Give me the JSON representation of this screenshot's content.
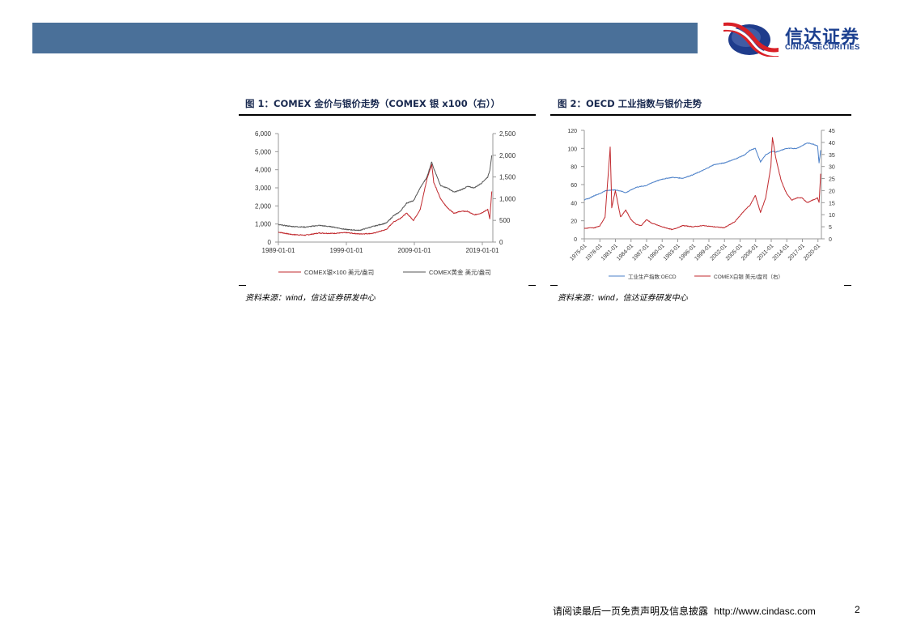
{
  "header": {
    "bar_color": "#4A7099",
    "logo": {
      "cn": "信达证券",
      "en": "CINDA SECURITIES"
    }
  },
  "figures": [
    {
      "title": "图 1：COMEX 金价与银价走势（COMEX 银 x100（右））",
      "source": {
        "prefix": "资料来源：",
        "wind": "wind",
        "suffix": "，信达证券研发中心"
      }
    },
    {
      "title": "图 2：OECD 工业指数与银价走势",
      "source": {
        "prefix": "资料来源：",
        "wind": "wind",
        "suffix": "，信达证券研发中心"
      }
    }
  ],
  "chart_data": [
    {
      "type": "line",
      "title": "COMEX 金价与银价走势（COMEX 银 x100（右））",
      "xlabel": "",
      "x_ticks": [
        "1989-01-01",
        "1999-01-01",
        "2009-01-01",
        "2019-01-01"
      ],
      "left_axis": {
        "ticks": [
          "0",
          "1,000",
          "2,000",
          "3,000",
          "4,000",
          "5,000",
          "6,000"
        ],
        "range": [
          0,
          6000
        ]
      },
      "right_axis": {
        "ticks": [
          "0",
          "500",
          "1,000",
          "1,500",
          "2,000",
          "2,500"
        ],
        "range": [
          0,
          2500
        ]
      },
      "grid": false,
      "legend_position": "bottom",
      "x": [
        1989,
        1991,
        1993,
        1995,
        1997,
        1999,
        2001,
        2003,
        2005,
        2006,
        2007,
        2008,
        2009,
        2010,
        2011,
        2011.7,
        2012,
        2013,
        2014,
        2015,
        2016,
        2017,
        2018,
        2019,
        2020,
        2020.3,
        2020.6
      ],
      "series": [
        {
          "name": "COMEX银×100 美元/盎司",
          "axis": "left",
          "color": "#C0282D",
          "values": [
            550,
            420,
            380,
            500,
            480,
            520,
            450,
            480,
            700,
            1100,
            1300,
            1600,
            1200,
            1800,
            3500,
            4300,
            3300,
            2400,
            1900,
            1600,
            1700,
            1700,
            1500,
            1600,
            1800,
            1300,
            2800
          ]
        },
        {
          "name": "COMEX黄金 美元/盎司",
          "axis": "right",
          "color": "#555555",
          "values": [
            400,
            360,
            345,
            385,
            350,
            290,
            270,
            360,
            440,
            600,
            700,
            900,
            950,
            1250,
            1500,
            1850,
            1700,
            1300,
            1250,
            1150,
            1200,
            1280,
            1250,
            1350,
            1500,
            1650,
            2000
          ]
        }
      ]
    },
    {
      "type": "line",
      "title": "OECD 工业指数与银价走势",
      "xlabel": "",
      "x_ticks": [
        "1975-01",
        "1978-01",
        "1981-01",
        "1984-01",
        "1987-01",
        "1990-01",
        "1993-01",
        "1996-01",
        "1999-01",
        "2002-01",
        "2005-01",
        "2008-01",
        "2011-01",
        "2014-01",
        "2017-01",
        "2020-01"
      ],
      "left_axis": {
        "ticks": [
          "0",
          "20",
          "40",
          "60",
          "80",
          "100",
          "120"
        ],
        "range": [
          0,
          120
        ]
      },
      "right_axis": {
        "ticks": [
          "0",
          "5",
          "10",
          "15",
          "20",
          "25",
          "30",
          "35",
          "40",
          "45"
        ],
        "range": [
          0,
          45
        ]
      },
      "grid": false,
      "legend_position": "bottom",
      "x": [
        1975,
        1976,
        1977,
        1978,
        1979,
        1980,
        1980.3,
        1981,
        1982,
        1983,
        1984,
        1985,
        1986,
        1987,
        1988,
        1990,
        1992,
        1994,
        1996,
        1998,
        2000,
        2002,
        2004,
        2006,
        2007,
        2008,
        2009,
        2010,
        2011,
        2011.3,
        2012,
        2013,
        2014,
        2015,
        2016,
        2017,
        2018,
        2019,
        2020,
        2020.3,
        2020.6
      ],
      "series": [
        {
          "name": "工业生产指数:OECD",
          "axis": "left",
          "color": "#4A7FC8",
          "values": [
            43,
            45,
            48,
            50,
            53,
            54,
            54,
            54,
            53,
            51,
            54,
            57,
            58,
            59,
            62,
            66,
            68,
            67,
            71,
            76,
            82,
            84,
            88,
            93,
            98,
            100,
            85,
            93,
            96,
            97,
            96,
            98,
            100,
            100,
            100,
            103,
            106,
            105,
            103,
            84,
            98
          ]
        },
        {
          "name": "COMEX白银 美元/盘司（右）",
          "axis": "right",
          "color": "#C0282D",
          "values": [
            4.3,
            4.5,
            4.6,
            5.4,
            9,
            38,
            13,
            20,
            9,
            12,
            8,
            6,
            5.5,
            8,
            6.5,
            5,
            3.8,
            5.5,
            5,
            5.5,
            5,
            4.6,
            7,
            12,
            14,
            18,
            11,
            17,
            30,
            42,
            33,
            24,
            19,
            16,
            17,
            17,
            15,
            16,
            17,
            15,
            27
          ]
        }
      ]
    }
  ],
  "footer": {
    "disclaimer": "请阅读最后一页免责声明及信息披露",
    "url": "http://www.cindasc.com",
    "page_number": "2"
  }
}
